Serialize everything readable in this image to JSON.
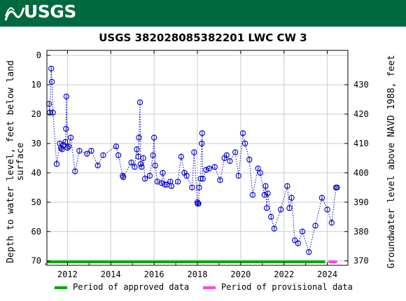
{
  "banner": {
    "logo_text": "USGS",
    "color": "#00693e"
  },
  "chart_data": {
    "type": "scatter",
    "title": "USGS 382028085382201 LWC CW 3",
    "ylabel_left": "Depth to water level, feet below land surface",
    "ylabel_left_lines": [
      "Depth to water level, feet below land",
      "surface"
    ],
    "ylabel_right": "Groundwater level above NAVD 1988, feet",
    "x_ticks": [
      "2012",
      "2014",
      "2016",
      "2018",
      "2020",
      "2022",
      "2024"
    ],
    "y_left_ticks": [
      0,
      10,
      20,
      30,
      40,
      50,
      60,
      70
    ],
    "y_right_ticks": [
      370,
      380,
      390,
      400,
      410,
      420,
      430
    ],
    "xlim": [
      2011.05,
      2024.95
    ],
    "ylim_left": [
      70,
      0
    ],
    "grid": true,
    "series": [
      {
        "name": "Depth to water level",
        "color": "#0000cc",
        "marker": "open-circle",
        "line": "dotted",
        "points": [
          [
            2011.15,
            16.5
          ],
          [
            2011.18,
            19.5
          ],
          [
            2011.25,
            4.5
          ],
          [
            2011.28,
            9.0
          ],
          [
            2011.33,
            19.5
          ],
          [
            2011.5,
            37.0
          ],
          [
            2011.65,
            30.0
          ],
          [
            2011.7,
            31.5
          ],
          [
            2011.75,
            32.0
          ],
          [
            2011.8,
            30.5
          ],
          [
            2011.9,
            29.5
          ],
          [
            2011.93,
            25.0
          ],
          [
            2011.95,
            14.0
          ],
          [
            2012.0,
            31.5
          ],
          [
            2012.05,
            31.0
          ],
          [
            2012.15,
            28.0
          ],
          [
            2012.35,
            39.5
          ],
          [
            2012.55,
            32.5
          ],
          [
            2012.9,
            33.5
          ],
          [
            2013.1,
            32.5
          ],
          [
            2013.4,
            37.5
          ],
          [
            2013.65,
            34.0
          ],
          [
            2014.25,
            31.0
          ],
          [
            2014.35,
            34.0
          ],
          [
            2014.55,
            41.0
          ],
          [
            2014.58,
            41.5
          ],
          [
            2014.95,
            36.5
          ],
          [
            2015.1,
            38.0
          ],
          [
            2015.2,
            32.0
          ],
          [
            2015.27,
            34.5
          ],
          [
            2015.3,
            28.0
          ],
          [
            2015.35,
            16.0
          ],
          [
            2015.38,
            37.0
          ],
          [
            2015.42,
            38.0
          ],
          [
            2015.5,
            35.0
          ],
          [
            2015.58,
            42.0
          ],
          [
            2015.8,
            41.0
          ],
          [
            2015.95,
            34.0
          ],
          [
            2016.0,
            28.0
          ],
          [
            2016.05,
            37.5
          ],
          [
            2016.15,
            43.0
          ],
          [
            2016.35,
            43.5
          ],
          [
            2016.4,
            40.0
          ],
          [
            2016.5,
            44.0
          ],
          [
            2016.6,
            44.0
          ],
          [
            2016.75,
            43.0
          ],
          [
            2016.8,
            44.5
          ],
          [
            2017.1,
            43.0
          ],
          [
            2017.25,
            34.5
          ],
          [
            2017.4,
            40.0
          ],
          [
            2017.5,
            41.0
          ],
          [
            2017.75,
            45.0
          ],
          [
            2017.85,
            33.0
          ],
          [
            2018.0,
            50.0
          ],
          [
            2018.02,
            50.5
          ],
          [
            2018.05,
            50.5
          ],
          [
            2018.08,
            45.0
          ],
          [
            2018.15,
            42.0
          ],
          [
            2018.2,
            30.0
          ],
          [
            2018.22,
            26.5
          ],
          [
            2018.25,
            42.0
          ],
          [
            2018.4,
            39.0
          ],
          [
            2018.55,
            38.5
          ],
          [
            2018.8,
            38.0
          ],
          [
            2019.05,
            42.5
          ],
          [
            2019.25,
            35.0
          ],
          [
            2019.35,
            34.0
          ],
          [
            2019.5,
            36.0
          ],
          [
            2019.75,
            33.0
          ],
          [
            2019.9,
            41.0
          ],
          [
            2020.1,
            26.5
          ],
          [
            2020.2,
            30.0
          ],
          [
            2020.4,
            35.5
          ],
          [
            2020.55,
            47.5
          ],
          [
            2020.8,
            38.5
          ],
          [
            2020.9,
            40.0
          ],
          [
            2021.1,
            47.5
          ],
          [
            2021.15,
            44.5
          ],
          [
            2021.2,
            52.0
          ],
          [
            2021.25,
            47.0
          ],
          [
            2021.4,
            55.0
          ],
          [
            2021.55,
            59.0
          ],
          [
            2021.85,
            52.5
          ],
          [
            2022.15,
            44.5
          ],
          [
            2022.25,
            52.0
          ],
          [
            2022.35,
            48.5
          ],
          [
            2022.5,
            63.0
          ],
          [
            2022.65,
            64.0
          ],
          [
            2022.85,
            60.0
          ],
          [
            2023.15,
            67.0
          ],
          [
            2023.45,
            58.0
          ],
          [
            2023.75,
            48.5
          ],
          [
            2024.0,
            52.5
          ],
          [
            2024.2,
            57.0
          ],
          [
            2024.4,
            45.0
          ],
          [
            2024.45,
            45.0
          ]
        ]
      }
    ],
    "periods": [
      {
        "name": "Period of approved data",
        "color": "#00aa00",
        "x": [
          2011.05,
          2023.9
        ]
      },
      {
        "name": "Period of provisional data",
        "color": "#ff44dd",
        "x": [
          2024.05,
          2024.45
        ]
      }
    ],
    "legend_placement": "bottom"
  }
}
